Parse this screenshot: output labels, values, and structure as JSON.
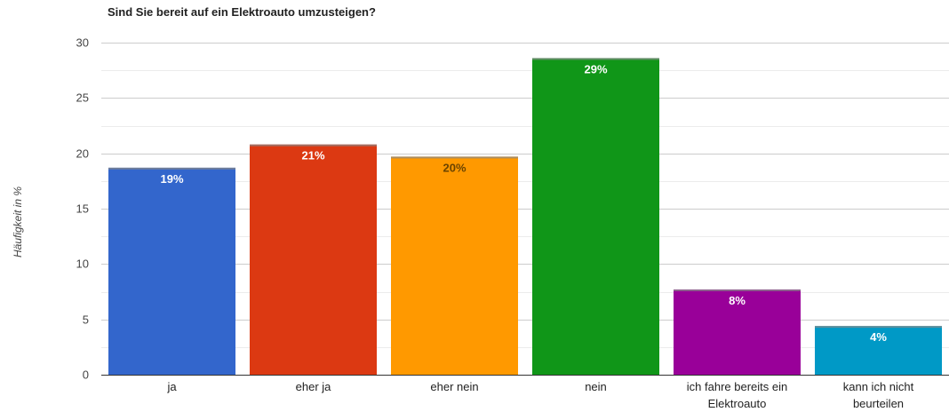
{
  "chart_data": {
    "type": "bar",
    "title": "Sind Sie bereit auf ein Elektroauto umzusteigen?",
    "xlabel": "",
    "ylabel": "Häufigkeit in %",
    "ylim": [
      0,
      30
    ],
    "yticks": [
      0,
      5,
      10,
      15,
      20,
      25,
      30
    ],
    "grid": true,
    "categories": [
      [
        "ja"
      ],
      [
        "eher ja"
      ],
      [
        "eher nein"
      ],
      [
        "nein"
      ],
      [
        "ich fahre bereits ein",
        "Elektroauto"
      ],
      [
        "kann ich nicht",
        "beurteilen"
      ]
    ],
    "values": [
      18.7,
      20.8,
      19.7,
      28.6,
      7.7,
      4.4
    ],
    "labels": [
      "19%",
      "21%",
      "20%",
      "29%",
      "8%",
      "4%"
    ],
    "colors": [
      "#3366cc",
      "#dc3912",
      "#ff9900",
      "#109618",
      "#990099",
      "#0099c6"
    ],
    "label_colors": [
      "#ffffff",
      "#ffffff",
      "#6b4400",
      "#ffffff",
      "#ffffff",
      "#ffffff"
    ]
  }
}
